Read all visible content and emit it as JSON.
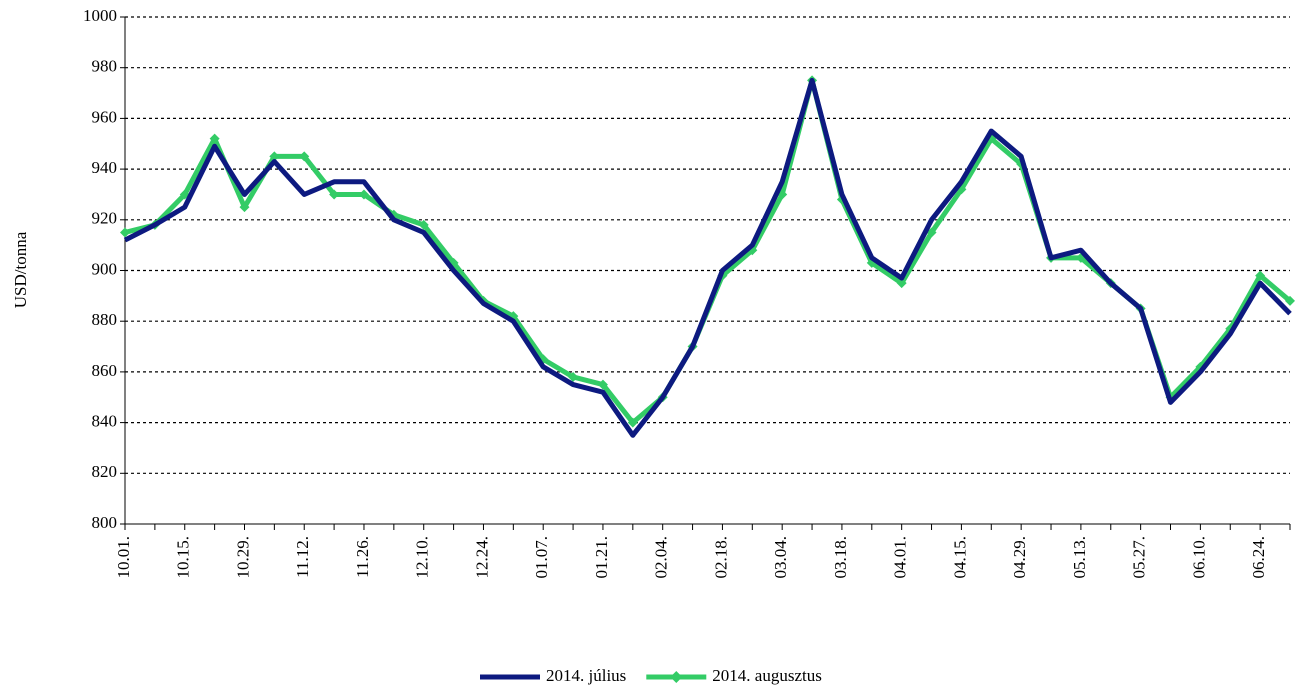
{
  "chart_data": {
    "type": "line",
    "y_label": "USD/tonna",
    "categories": [
      "10.01.",
      null,
      "10.15.",
      null,
      "10.29.",
      null,
      "11.12.",
      null,
      "11.26.",
      null,
      "12.10.",
      null,
      "12.24.",
      null,
      "01.07.",
      null,
      "01.21.",
      null,
      "02.04.",
      null,
      "02.18.",
      null,
      "03.04.",
      null,
      "03.18.",
      null,
      "04.01.",
      null,
      "04.15.",
      null,
      "04.29.",
      null,
      "05.13.",
      null,
      "05.27.",
      null,
      "06.10.",
      null,
      "06.24.",
      null
    ],
    "series": [
      {
        "name": "2014. július",
        "color": "#0d1a80",
        "values": [
          912,
          918,
          925,
          949,
          930,
          943,
          930,
          935,
          935,
          920,
          915,
          900,
          887,
          880,
          862,
          855,
          852,
          835,
          850,
          870,
          900,
          910,
          935,
          975,
          930,
          905,
          897,
          920,
          935,
          955,
          945,
          905,
          908,
          895,
          885,
          848,
          860,
          875,
          895,
          883
        ]
      },
      {
        "name": "2014. augusztus",
        "color": "#33cc66",
        "marker": "diamond",
        "values": [
          915,
          918,
          930,
          952,
          925,
          945,
          945,
          930,
          930,
          922,
          918,
          903,
          888,
          882,
          865,
          858,
          855,
          840,
          850,
          870,
          898,
          908,
          930,
          975,
          928,
          903,
          895,
          915,
          932,
          952,
          942,
          905,
          905,
          895,
          885,
          850,
          862,
          877,
          898,
          888
        ]
      }
    ],
    "ylim": [
      800,
      1000
    ],
    "yticks": [
      800,
      820,
      840,
      860,
      880,
      900,
      920,
      940,
      960,
      980,
      1000
    ],
    "grid": true,
    "legend": "bottom"
  }
}
